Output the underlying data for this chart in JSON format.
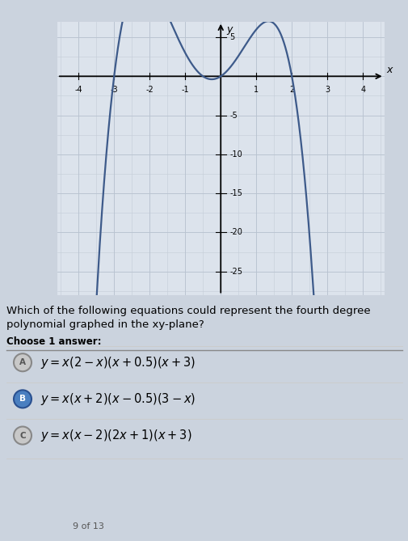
{
  "title_question": "Which of the following equations could represent the fourth degree\npolynomial graphed in the xy-plane?",
  "choose_label": "Choose 1 answer:",
  "answers": [
    {
      "label": "A",
      "text_latex": "y = x(2 - x)(x + 0.5)(x + 3)",
      "selected": false
    },
    {
      "label": "B",
      "text_latex": "y = x(x + 2)(x - 0.5)(3 - x)",
      "selected": true
    },
    {
      "label": "C",
      "text_latex": "y = x(x - 2)(2x + 1)(x + 3)",
      "selected": false
    }
  ],
  "footer": "9 of 13",
  "graph": {
    "xlim": [
      -4.6,
      4.6
    ],
    "ylim": [
      -28,
      7
    ],
    "xtick_vals": [
      -4,
      -3,
      -2,
      -1,
      1,
      2,
      3,
      4
    ],
    "ytick_vals": [
      5,
      -5,
      -10,
      -15,
      -20,
      -25
    ],
    "curve_color": "#3d5a8a",
    "curve_lw": 1.6,
    "grid_minor_color": "#c4ccd8",
    "grid_major_color": "#b8c2d0",
    "panel_bg": "#dce3ec",
    "outer_bg": "#cbd3de"
  }
}
